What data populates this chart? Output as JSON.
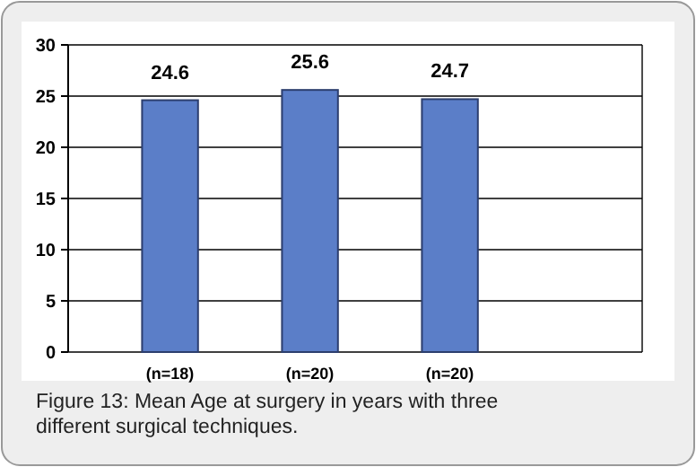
{
  "chart_data": {
    "type": "bar",
    "categories": [
      "(n=18)",
      "(n=20)",
      "(n=20)"
    ],
    "values": [
      24.6,
      25.6,
      24.7
    ],
    "color": "#5b7ec8",
    "ylim": [
      0,
      30
    ],
    "yticks": [
      0,
      5,
      10,
      15,
      20,
      25,
      30
    ],
    "grid": "y",
    "data_labels": true,
    "annotations": [
      "Figure 13: Mean Age at surgery in years with three different surgical techniques."
    ]
  }
}
